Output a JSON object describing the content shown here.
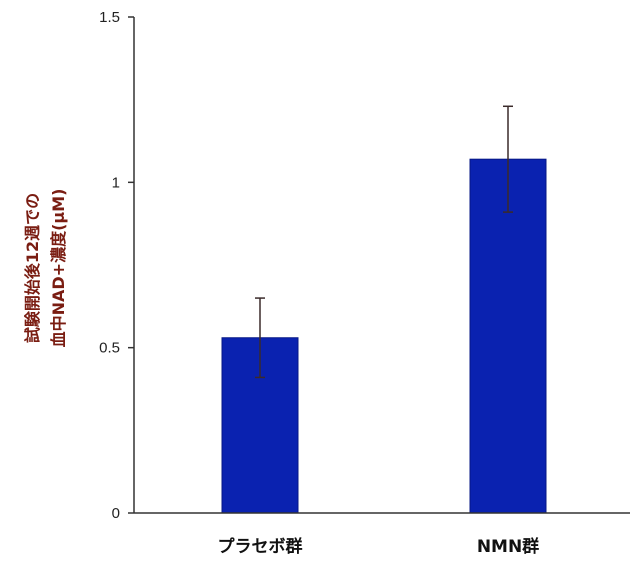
{
  "chart_data": {
    "type": "bar",
    "title": "",
    "xlabel": "",
    "ylabel": [
      "試験開始後12週での",
      "血中NAD+濃度(μM)"
    ],
    "categories": [
      "プラセボ群",
      "NMN群"
    ],
    "values": [
      0.53,
      1.07
    ],
    "errors": [
      0.12,
      0.16
    ],
    "ylim": [
      0,
      1.5
    ],
    "yticks": [
      0,
      0.5,
      1,
      1.5
    ],
    "ytick_labels": [
      "0",
      "0.5",
      "1",
      "1.5"
    ],
    "grid": false,
    "legend": "none",
    "colors": {
      "bar": "#0a22b0",
      "bar_edge": "#061786",
      "axis": "#333333",
      "error_bar": "#3a2a2a",
      "ylabel": "#7a1d12"
    }
  }
}
